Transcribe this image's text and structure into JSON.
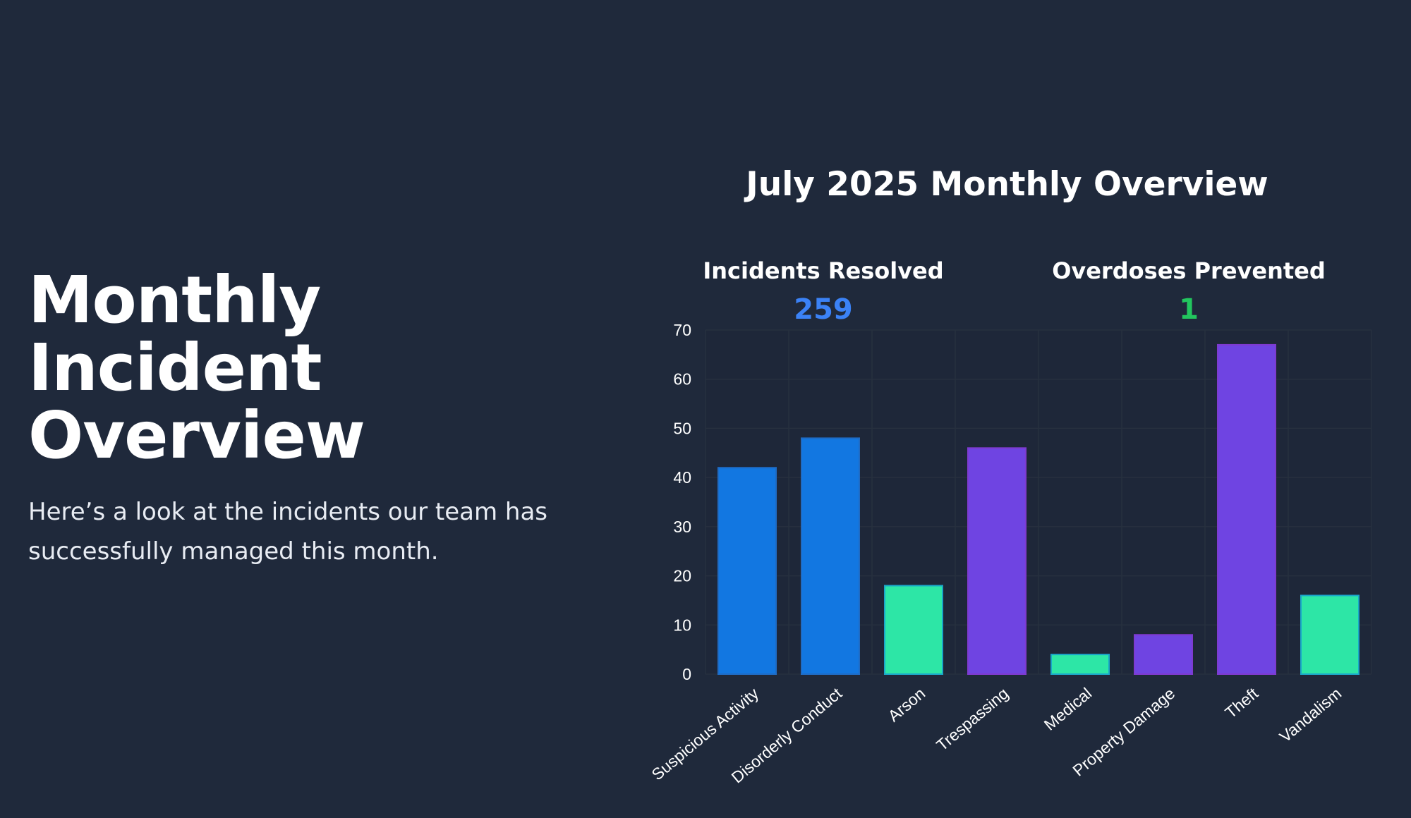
{
  "hero": {
    "title_lines": [
      "Monthly",
      "Incident",
      "Overview"
    ],
    "subtitle": "Here’s a look at the incidents our team has successfully managed this month."
  },
  "overview": {
    "title": "July 2025 Monthly Overview"
  },
  "stats": {
    "incidents_resolved": {
      "label": "Incidents Resolved",
      "value": "259",
      "color": "#3b82f6"
    },
    "overdoses_prevented": {
      "label": "Overdoses Prevented",
      "value": "1",
      "color": "#22c55e"
    }
  },
  "chart_data": {
    "type": "bar",
    "title": "",
    "xlabel": "",
    "ylabel": "",
    "categories": [
      "Suspicious Activity",
      "Disorderly Conduct",
      "Arson",
      "Trespassing",
      "Medical",
      "Property Damage",
      "Theft",
      "Vandalism"
    ],
    "values": [
      42,
      48,
      18,
      46,
      4,
      8,
      67,
      16
    ],
    "colors": [
      "#1277e1",
      "#1277e1",
      "#2de6a6",
      "#6f44e2",
      "#2de6a6",
      "#6f44e2",
      "#6f44e2",
      "#2de6a6"
    ],
    "ylim": [
      0,
      70
    ],
    "yticks": [
      0,
      10,
      20,
      30,
      40,
      50,
      60,
      70
    ],
    "grid": true,
    "legend": "none",
    "background": "#1f293b",
    "grid_color": "#27303f"
  }
}
